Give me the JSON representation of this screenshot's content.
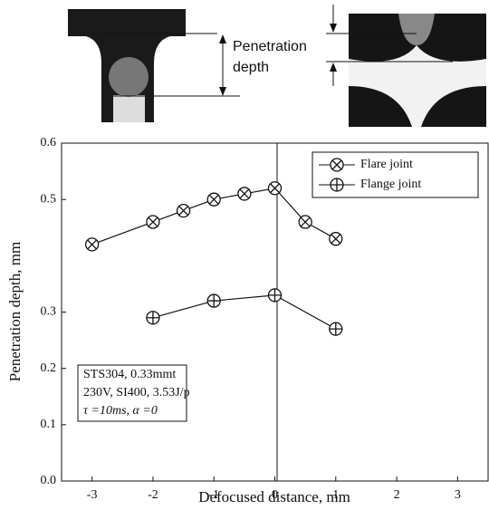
{
  "chart_data": {
    "type": "line",
    "xlabel": "Defocused distance, mm",
    "ylabel": "Penetration depth, mm",
    "xlim": [
      -3.5,
      3.5
    ],
    "xticks": [
      -3,
      -2,
      -1,
      0,
      1,
      2,
      3
    ],
    "ylim": [
      0,
      0.6
    ],
    "yticks": [
      {
        "value": 0,
        "label": "0.0"
      },
      0.1,
      0.2,
      0.3,
      0.5,
      0.6
    ],
    "legend": "upper right",
    "series": [
      {
        "name": "Flare joint",
        "color": "#111111",
        "marker": "circle-x",
        "x": [
          -3,
          -2,
          -1.5,
          -1,
          -0.5,
          0,
          0.5,
          1
        ],
        "values": [
          0.42,
          0.46,
          0.48,
          0.5,
          0.51,
          0.52,
          0.46,
          0.43
        ]
      },
      {
        "name": "Flange joint",
        "color": "#111111",
        "marker": "circle-plus",
        "x": [
          -2,
          -1,
          0,
          1
        ],
        "values": [
          0.29,
          0.32,
          0.33,
          0.27
        ]
      }
    ],
    "annotation": [
      "STS304, 0.33mmt",
      "230V, SI400, 3.53J/p",
      "τ =10ms, α =0"
    ],
    "image_label": [
      "Penetration",
      "depth"
    ]
  }
}
